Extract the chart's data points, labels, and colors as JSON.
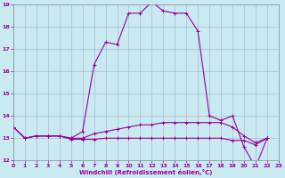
{
  "xlabel": "Windchill (Refroidissement éolien,°C)",
  "x": [
    0,
    1,
    2,
    3,
    4,
    5,
    6,
    7,
    8,
    9,
    10,
    11,
    12,
    13,
    14,
    15,
    16,
    17,
    18,
    19,
    20,
    21,
    22,
    23
  ],
  "line1": [
    13.5,
    13.0,
    13.1,
    13.1,
    13.1,
    13.0,
    13.3,
    16.3,
    17.3,
    17.2,
    18.6,
    18.6,
    19.1,
    18.7,
    18.6,
    18.6,
    17.8,
    14.0,
    13.8,
    14.0,
    12.6,
    11.7,
    13.0,
    null
  ],
  "line2": [
    13.5,
    13.0,
    13.1,
    13.1,
    13.1,
    13.0,
    13.0,
    13.2,
    13.3,
    13.4,
    13.5,
    13.6,
    13.6,
    13.7,
    13.7,
    13.7,
    13.7,
    13.7,
    13.7,
    13.5,
    13.1,
    12.8,
    13.0,
    null
  ],
  "line3": [
    13.5,
    13.0,
    13.1,
    13.1,
    13.1,
    12.95,
    12.95,
    12.95,
    13.0,
    13.0,
    13.0,
    13.0,
    13.0,
    13.0,
    13.0,
    13.0,
    13.0,
    13.0,
    13.0,
    12.9,
    12.9,
    12.7,
    13.0,
    null
  ],
  "bg_color": "#c8eaf0",
  "line_color": "#990099",
  "grid_color": "#b0b8d8",
  "ylim": [
    12,
    19
  ],
  "yticks": [
    12,
    13,
    14,
    15,
    16,
    17,
    18,
    19
  ],
  "xlim": [
    0,
    23
  ],
  "xticks": [
    0,
    1,
    2,
    3,
    4,
    5,
    6,
    7,
    8,
    9,
    10,
    11,
    12,
    13,
    14,
    15,
    16,
    17,
    18,
    19,
    20,
    21,
    22,
    23
  ]
}
